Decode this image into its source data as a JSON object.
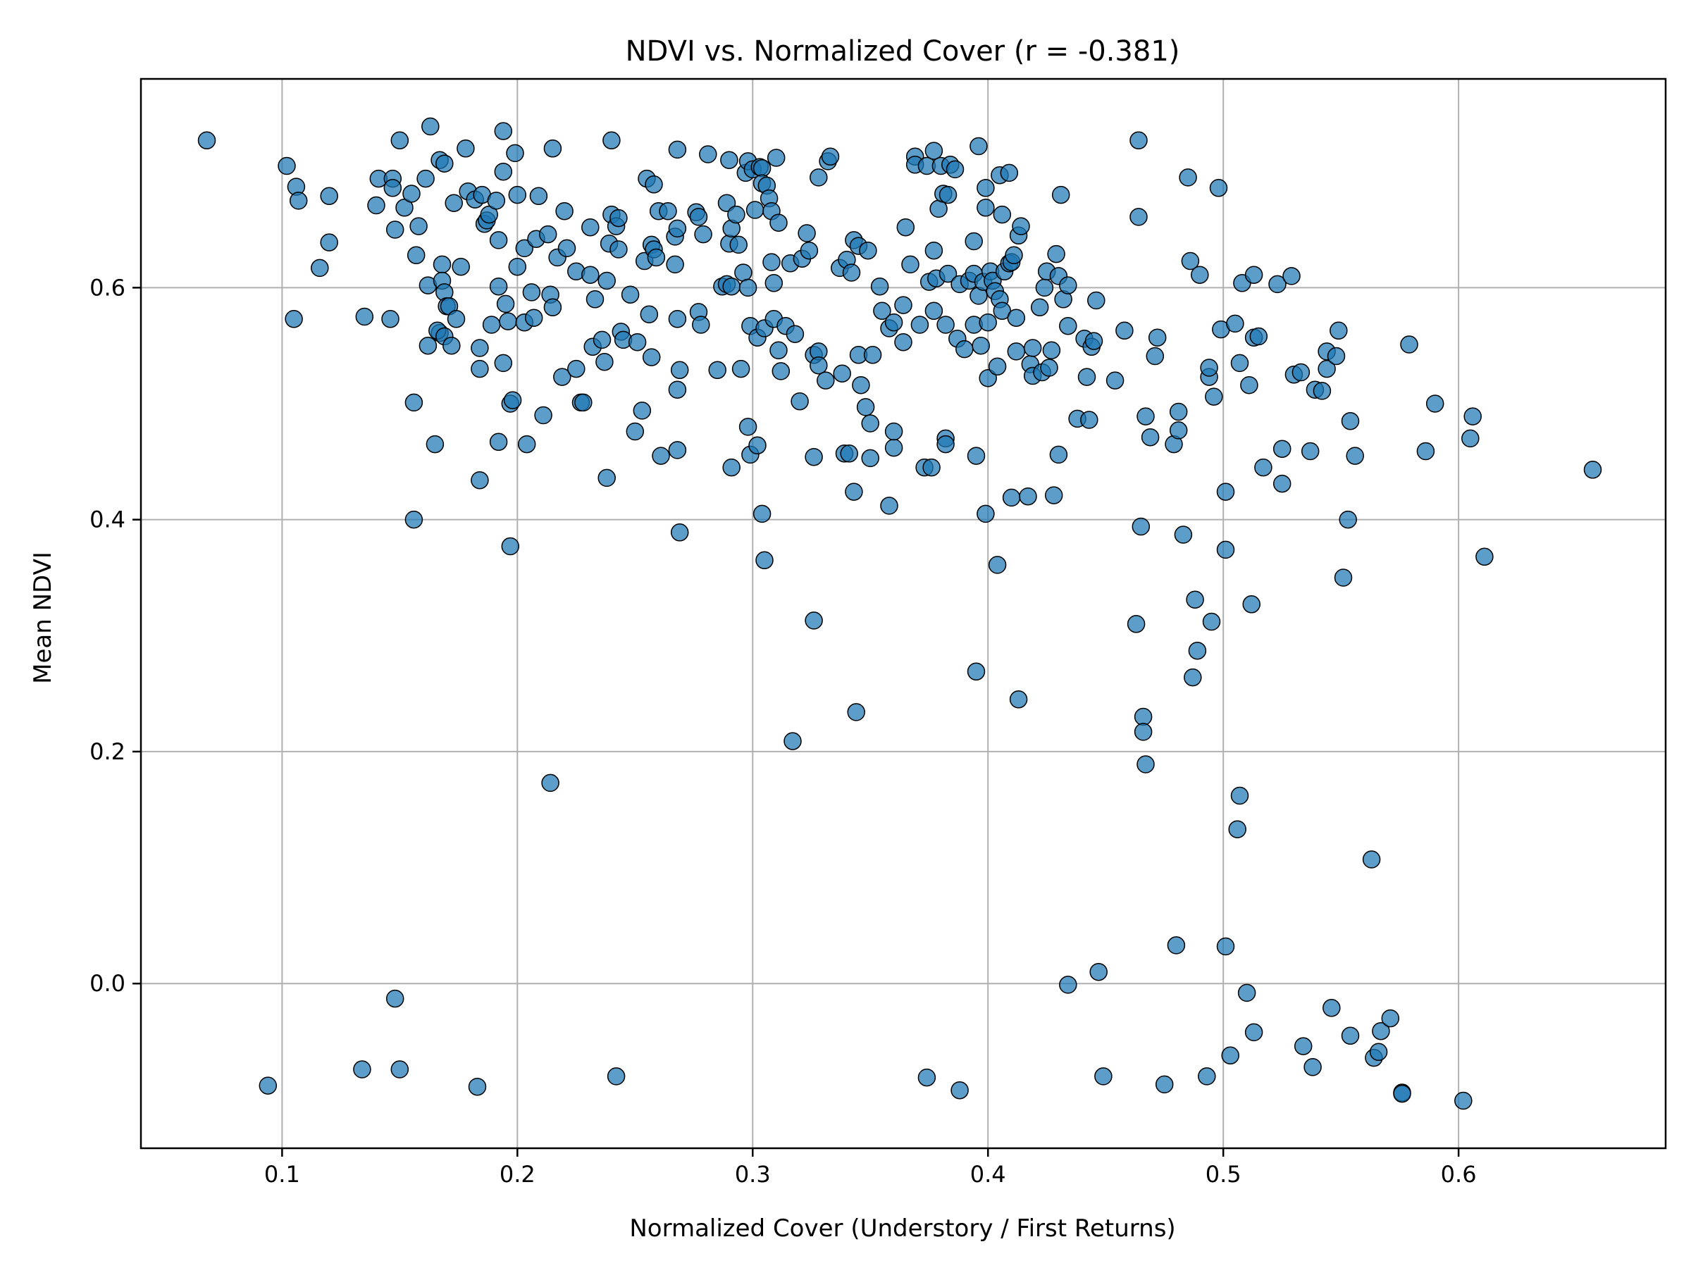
{
  "chart_data": {
    "type": "scatter",
    "title": "NDVI vs. Normalized Cover (r = -0.381)",
    "xlabel": "Normalized Cover (Understory / First Returns)",
    "ylabel": "Mean NDVI",
    "xlim": [
      0.04,
      0.688
    ],
    "ylim": [
      -0.142,
      0.78
    ],
    "xticks": [
      0.1,
      0.2,
      0.3,
      0.4,
      0.5,
      0.6
    ],
    "xtick_labels": [
      "0.1",
      "0.2",
      "0.3",
      "0.4",
      "0.5",
      "0.6"
    ],
    "yticks": [
      0.0,
      0.2,
      0.4,
      0.6
    ],
    "ytick_labels": [
      "0.0",
      "0.2",
      "0.4",
      "0.6"
    ],
    "grid": true,
    "legend": "none",
    "color": "#1f77b4",
    "edge_color": "#000000",
    "points": [
      [
        0.068,
        0.727
      ],
      [
        0.102,
        0.705
      ],
      [
        0.106,
        0.687
      ],
      [
        0.107,
        0.675
      ],
      [
        0.105,
        0.573
      ],
      [
        0.094,
        -0.088
      ],
      [
        0.12,
        0.679
      ],
      [
        0.12,
        0.639
      ],
      [
        0.116,
        0.617
      ],
      [
        0.135,
        0.575
      ],
      [
        0.134,
        -0.074
      ],
      [
        0.141,
        0.694
      ],
      [
        0.14,
        0.671
      ],
      [
        0.147,
        0.694
      ],
      [
        0.147,
        0.686
      ],
      [
        0.15,
        0.727
      ],
      [
        0.152,
        0.669
      ],
      [
        0.155,
        0.681
      ],
      [
        0.148,
        0.65
      ],
      [
        0.158,
        0.653
      ],
      [
        0.157,
        0.628
      ],
      [
        0.146,
        0.573
      ],
      [
        0.161,
        0.694
      ],
      [
        0.162,
        0.602
      ],
      [
        0.162,
        0.55
      ],
      [
        0.156,
        0.501
      ],
      [
        0.156,
        0.4
      ],
      [
        0.148,
        -0.013
      ],
      [
        0.15,
        -0.074
      ],
      [
        0.163,
        0.739
      ],
      [
        0.167,
        0.71
      ],
      [
        0.169,
        0.707
      ],
      [
        0.173,
        0.673
      ],
      [
        0.168,
        0.62
      ],
      [
        0.168,
        0.606
      ],
      [
        0.169,
        0.596
      ],
      [
        0.17,
        0.584
      ],
      [
        0.171,
        0.584
      ],
      [
        0.167,
        0.561
      ],
      [
        0.166,
        0.563
      ],
      [
        0.169,
        0.558
      ],
      [
        0.172,
        0.55
      ],
      [
        0.174,
        0.573
      ],
      [
        0.176,
        0.618
      ],
      [
        0.165,
        0.465
      ],
      [
        0.178,
        0.72
      ],
      [
        0.179,
        0.683
      ],
      [
        0.182,
        0.676
      ],
      [
        0.185,
        0.68
      ],
      [
        0.186,
        0.655
      ],
      [
        0.187,
        0.658
      ],
      [
        0.188,
        0.663
      ],
      [
        0.189,
        0.568
      ],
      [
        0.184,
        0.548
      ],
      [
        0.184,
        0.53
      ],
      [
        0.184,
        0.434
      ],
      [
        0.183,
        -0.089
      ],
      [
        0.191,
        0.675
      ],
      [
        0.192,
        0.641
      ],
      [
        0.192,
        0.601
      ],
      [
        0.195,
        0.586
      ],
      [
        0.196,
        0.571
      ],
      [
        0.194,
        0.535
      ],
      [
        0.197,
        0.5
      ],
      [
        0.198,
        0.503
      ],
      [
        0.192,
        0.467
      ],
      [
        0.197,
        0.377
      ],
      [
        0.194,
        0.735
      ],
      [
        0.194,
        0.7
      ],
      [
        0.199,
        0.716
      ],
      [
        0.2,
        0.68
      ],
      [
        0.2,
        0.618
      ],
      [
        0.203,
        0.634
      ],
      [
        0.203,
        0.57
      ],
      [
        0.206,
        0.596
      ],
      [
        0.207,
        0.574
      ],
      [
        0.204,
        0.465
      ],
      [
        0.208,
        0.642
      ],
      [
        0.209,
        0.679
      ],
      [
        0.211,
        0.49
      ],
      [
        0.213,
        0.646
      ],
      [
        0.214,
        0.594
      ],
      [
        0.215,
        0.583
      ],
      [
        0.215,
        0.72
      ],
      [
        0.217,
        0.626
      ],
      [
        0.219,
        0.523
      ],
      [
        0.221,
        0.634
      ],
      [
        0.22,
        0.666
      ],
      [
        0.225,
        0.614
      ],
      [
        0.225,
        0.53
      ],
      [
        0.227,
        0.501
      ],
      [
        0.228,
        0.501
      ],
      [
        0.231,
        0.652
      ],
      [
        0.231,
        0.611
      ],
      [
        0.232,
        0.549
      ],
      [
        0.233,
        0.59
      ],
      [
        0.214,
        0.173
      ],
      [
        0.236,
        0.555
      ],
      [
        0.237,
        0.536
      ],
      [
        0.238,
        0.606
      ],
      [
        0.239,
        0.638
      ],
      [
        0.24,
        0.663
      ],
      [
        0.24,
        0.727
      ],
      [
        0.242,
        0.653
      ],
      [
        0.243,
        0.66
      ],
      [
        0.243,
        0.633
      ],
      [
        0.244,
        0.562
      ],
      [
        0.245,
        0.555
      ],
      [
        0.248,
        0.594
      ],
      [
        0.238,
        0.436
      ],
      [
        0.242,
        -0.08
      ],
      [
        0.251,
        0.553
      ],
      [
        0.25,
        0.476
      ],
      [
        0.253,
        0.494
      ],
      [
        0.254,
        0.623
      ],
      [
        0.255,
        0.694
      ],
      [
        0.256,
        0.577
      ],
      [
        0.257,
        0.637
      ],
      [
        0.258,
        0.633
      ],
      [
        0.258,
        0.689
      ],
      [
        0.257,
        0.54
      ],
      [
        0.259,
        0.626
      ],
      [
        0.26,
        0.666
      ],
      [
        0.261,
        0.455
      ],
      [
        0.264,
        0.666
      ],
      [
        0.267,
        0.644
      ],
      [
        0.268,
        0.719
      ],
      [
        0.268,
        0.651
      ],
      [
        0.267,
        0.62
      ],
      [
        0.268,
        0.573
      ],
      [
        0.269,
        0.529
      ],
      [
        0.268,
        0.512
      ],
      [
        0.268,
        0.46
      ],
      [
        0.269,
        0.389
      ],
      [
        0.276,
        0.665
      ],
      [
        0.277,
        0.661
      ],
      [
        0.277,
        0.579
      ],
      [
        0.278,
        0.568
      ],
      [
        0.279,
        0.646
      ],
      [
        0.281,
        0.715
      ],
      [
        0.285,
        0.529
      ],
      [
        0.287,
        0.601
      ],
      [
        0.289,
        0.673
      ],
      [
        0.289,
        0.603
      ],
      [
        0.29,
        0.71
      ],
      [
        0.29,
        0.638
      ],
      [
        0.291,
        0.651
      ],
      [
        0.291,
        0.601
      ],
      [
        0.291,
        0.445
      ],
      [
        0.293,
        0.663
      ],
      [
        0.294,
        0.637
      ],
      [
        0.295,
        0.53
      ],
      [
        0.296,
        0.613
      ],
      [
        0.297,
        0.699
      ],
      [
        0.298,
        0.709
      ],
      [
        0.298,
        0.6
      ],
      [
        0.298,
        0.48
      ],
      [
        0.299,
        0.567
      ],
      [
        0.299,
        0.456
      ],
      [
        0.3,
        0.702
      ],
      [
        0.301,
        0.667
      ],
      [
        0.302,
        0.557
      ],
      [
        0.302,
        0.464
      ],
      [
        0.303,
        0.704
      ],
      [
        0.304,
        0.703
      ],
      [
        0.304,
        0.69
      ],
      [
        0.304,
        0.405
      ],
      [
        0.305,
        0.565
      ],
      [
        0.306,
        0.688
      ],
      [
        0.305,
        0.365
      ],
      [
        0.307,
        0.677
      ],
      [
        0.308,
        0.622
      ],
      [
        0.308,
        0.666
      ],
      [
        0.309,
        0.573
      ],
      [
        0.309,
        0.604
      ],
      [
        0.31,
        0.712
      ],
      [
        0.311,
        0.546
      ],
      [
        0.311,
        0.656
      ],
      [
        0.312,
        0.528
      ],
      [
        0.314,
        0.567
      ],
      [
        0.316,
        0.621
      ],
      [
        0.317,
        0.209
      ],
      [
        0.318,
        0.56
      ],
      [
        0.32,
        0.502
      ],
      [
        0.321,
        0.625
      ],
      [
        0.323,
        0.647
      ],
      [
        0.324,
        0.632
      ],
      [
        0.326,
        0.542
      ],
      [
        0.326,
        0.454
      ],
      [
        0.326,
        0.313
      ],
      [
        0.328,
        0.545
      ],
      [
        0.328,
        0.533
      ],
      [
        0.328,
        0.695
      ],
      [
        0.332,
        0.709
      ],
      [
        0.333,
        0.713
      ],
      [
        0.331,
        0.52
      ],
      [
        0.337,
        0.617
      ],
      [
        0.338,
        0.526
      ],
      [
        0.339,
        0.457
      ],
      [
        0.341,
        0.457
      ],
      [
        0.34,
        0.624
      ],
      [
        0.342,
        0.613
      ],
      [
        0.343,
        0.641
      ],
      [
        0.345,
        0.636
      ],
      [
        0.345,
        0.542
      ],
      [
        0.343,
        0.424
      ],
      [
        0.344,
        0.234
      ],
      [
        0.346,
        0.516
      ],
      [
        0.348,
        0.497
      ],
      [
        0.349,
        0.632
      ],
      [
        0.35,
        0.483
      ],
      [
        0.35,
        0.453
      ],
      [
        0.351,
        0.542
      ],
      [
        0.354,
        0.601
      ],
      [
        0.355,
        0.58
      ],
      [
        0.358,
        0.565
      ],
      [
        0.358,
        0.412
      ],
      [
        0.36,
        0.57
      ],
      [
        0.36,
        0.462
      ],
      [
        0.36,
        0.476
      ],
      [
        0.364,
        0.553
      ],
      [
        0.364,
        0.585
      ],
      [
        0.365,
        0.652
      ],
      [
        0.367,
        0.62
      ],
      [
        0.369,
        0.713
      ],
      [
        0.369,
        0.706
      ],
      [
        0.371,
        0.568
      ],
      [
        0.373,
        0.445
      ],
      [
        0.374,
        0.705
      ],
      [
        0.375,
        0.605
      ],
      [
        0.377,
        0.718
      ],
      [
        0.374,
        -0.081
      ],
      [
        0.376,
        0.445
      ],
      [
        0.377,
        0.58
      ],
      [
        0.377,
        0.632
      ],
      [
        0.378,
        0.608
      ],
      [
        0.379,
        0.668
      ],
      [
        0.38,
        0.705
      ],
      [
        0.381,
        0.681
      ],
      [
        0.382,
        0.568
      ],
      [
        0.382,
        0.47
      ],
      [
        0.382,
        0.465
      ],
      [
        0.383,
        0.68
      ],
      [
        0.383,
        0.612
      ],
      [
        0.384,
        0.706
      ],
      [
        0.386,
        0.702
      ],
      [
        0.387,
        0.556
      ],
      [
        0.388,
        0.603
      ],
      [
        0.388,
        -0.092
      ],
      [
        0.39,
        0.547
      ],
      [
        0.392,
        0.606
      ],
      [
        0.394,
        0.568
      ],
      [
        0.394,
        0.64
      ],
      [
        0.394,
        0.612
      ],
      [
        0.395,
        0.455
      ],
      [
        0.395,
        0.269
      ],
      [
        0.396,
        0.722
      ],
      [
        0.397,
        0.55
      ],
      [
        0.396,
        0.593
      ],
      [
        0.398,
        0.605
      ],
      [
        0.399,
        0.686
      ],
      [
        0.399,
        0.669
      ],
      [
        0.399,
        0.405
      ],
      [
        0.4,
        0.522
      ],
      [
        0.4,
        0.57
      ],
      [
        0.401,
        0.614
      ],
      [
        0.402,
        0.606
      ],
      [
        0.403,
        0.597
      ],
      [
        0.404,
        0.532
      ],
      [
        0.404,
        0.361
      ],
      [
        0.405,
        0.697
      ],
      [
        0.405,
        0.59
      ],
      [
        0.406,
        0.663
      ],
      [
        0.406,
        0.58
      ],
      [
        0.407,
        0.614
      ],
      [
        0.409,
        0.699
      ],
      [
        0.409,
        0.621
      ],
      [
        0.41,
        0.622
      ],
      [
        0.41,
        0.419
      ],
      [
        0.411,
        0.628
      ],
      [
        0.412,
        0.545
      ],
      [
        0.412,
        0.574
      ],
      [
        0.413,
        0.645
      ],
      [
        0.413,
        0.245
      ],
      [
        0.414,
        0.653
      ],
      [
        0.417,
        0.42
      ],
      [
        0.418,
        0.534
      ],
      [
        0.419,
        0.548
      ],
      [
        0.419,
        0.524
      ],
      [
        0.422,
        0.583
      ],
      [
        0.423,
        0.527
      ],
      [
        0.424,
        0.6
      ],
      [
        0.425,
        0.614
      ],
      [
        0.426,
        0.531
      ],
      [
        0.427,
        0.546
      ],
      [
        0.428,
        0.421
      ],
      [
        0.429,
        0.629
      ],
      [
        0.43,
        0.61
      ],
      [
        0.43,
        0.456
      ],
      [
        0.431,
        0.68
      ],
      [
        0.432,
        0.59
      ],
      [
        0.434,
        0.567
      ],
      [
        0.434,
        0.602
      ],
      [
        0.434,
        -0.001
      ],
      [
        0.438,
        0.487
      ],
      [
        0.441,
        0.556
      ],
      [
        0.442,
        0.523
      ],
      [
        0.443,
        0.486
      ],
      [
        0.444,
        0.549
      ],
      [
        0.445,
        0.554
      ],
      [
        0.446,
        0.589
      ],
      [
        0.447,
        0.01
      ],
      [
        0.449,
        -0.08
      ],
      [
        0.454,
        0.52
      ],
      [
        0.458,
        0.563
      ],
      [
        0.463,
        0.31
      ],
      [
        0.464,
        0.727
      ],
      [
        0.464,
        0.661
      ],
      [
        0.465,
        0.394
      ],
      [
        0.466,
        0.23
      ],
      [
        0.466,
        0.217
      ],
      [
        0.467,
        0.489
      ],
      [
        0.467,
        0.189
      ],
      [
        0.469,
        0.471
      ],
      [
        0.471,
        0.541
      ],
      [
        0.472,
        0.557
      ],
      [
        0.475,
        -0.087
      ],
      [
        0.479,
        0.465
      ],
      [
        0.48,
        0.033
      ],
      [
        0.481,
        0.493
      ],
      [
        0.481,
        0.477
      ],
      [
        0.483,
        0.387
      ],
      [
        0.485,
        0.695
      ],
      [
        0.486,
        0.623
      ],
      [
        0.487,
        0.264
      ],
      [
        0.488,
        0.331
      ],
      [
        0.489,
        0.287
      ],
      [
        0.49,
        0.611
      ],
      [
        0.493,
        -0.08
      ],
      [
        0.494,
        0.523
      ],
      [
        0.494,
        0.531
      ],
      [
        0.495,
        0.312
      ],
      [
        0.496,
        0.506
      ],
      [
        0.498,
        0.686
      ],
      [
        0.499,
        0.564
      ],
      [
        0.501,
        0.424
      ],
      [
        0.501,
        0.374
      ],
      [
        0.501,
        0.032
      ],
      [
        0.503,
        -0.062
      ],
      [
        0.505,
        0.569
      ],
      [
        0.506,
        0.133
      ],
      [
        0.507,
        0.535
      ],
      [
        0.507,
        0.162
      ],
      [
        0.508,
        0.604
      ],
      [
        0.51,
        -0.008
      ],
      [
        0.511,
        0.516
      ],
      [
        0.512,
        0.327
      ],
      [
        0.513,
        0.611
      ],
      [
        0.513,
        0.557
      ],
      [
        0.513,
        -0.042
      ],
      [
        0.515,
        0.558
      ],
      [
        0.517,
        0.445
      ],
      [
        0.523,
        0.603
      ],
      [
        0.525,
        0.431
      ],
      [
        0.525,
        0.461
      ],
      [
        0.529,
        0.61
      ],
      [
        0.53,
        0.525
      ],
      [
        0.533,
        0.527
      ],
      [
        0.534,
        -0.054
      ],
      [
        0.537,
        0.459
      ],
      [
        0.538,
        -0.072
      ],
      [
        0.539,
        0.512
      ],
      [
        0.542,
        0.511
      ],
      [
        0.544,
        0.545
      ],
      [
        0.544,
        0.53
      ],
      [
        0.546,
        -0.021
      ],
      [
        0.548,
        0.541
      ],
      [
        0.549,
        0.563
      ],
      [
        0.551,
        0.35
      ],
      [
        0.553,
        0.4
      ],
      [
        0.554,
        0.485
      ],
      [
        0.554,
        -0.045
      ],
      [
        0.556,
        0.455
      ],
      [
        0.563,
        0.107
      ],
      [
        0.564,
        -0.064
      ],
      [
        0.566,
        -0.059
      ],
      [
        0.567,
        -0.041
      ],
      [
        0.571,
        -0.03
      ],
      [
        0.576,
        -0.094
      ],
      [
        0.576,
        -0.095
      ],
      [
        0.579,
        0.551
      ],
      [
        0.586,
        0.459
      ],
      [
        0.59,
        0.5
      ],
      [
        0.602,
        -0.101
      ],
      [
        0.605,
        0.47
      ],
      [
        0.606,
        0.489
      ],
      [
        0.611,
        0.368
      ],
      [
        0.657,
        0.443
      ]
    ]
  }
}
